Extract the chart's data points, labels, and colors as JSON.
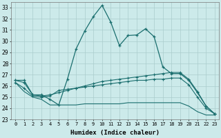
{
  "xlabel": "Humidex (Indice chaleur)",
  "background_color": "#cceaea",
  "grid_color": "#aacccc",
  "line_color": "#1a6e6e",
  "xlim": [
    -0.5,
    23.5
  ],
  "ylim": [
    23,
    33.5
  ],
  "yticks": [
    23,
    24,
    25,
    26,
    27,
    28,
    29,
    30,
    31,
    32,
    33
  ],
  "xticks": [
    0,
    1,
    2,
    3,
    4,
    5,
    6,
    7,
    8,
    9,
    10,
    11,
    12,
    13,
    14,
    15,
    16,
    17,
    18,
    19,
    20,
    21,
    22,
    23
  ],
  "line1_x": [
    0,
    1,
    2,
    3,
    4,
    5,
    6,
    7,
    8,
    9,
    10,
    11,
    12,
    13,
    14,
    15,
    16,
    17,
    18,
    19,
    20,
    21,
    22,
    23
  ],
  "line1_y": [
    26.5,
    26.5,
    25.2,
    25.2,
    24.8,
    24.3,
    26.6,
    29.3,
    30.9,
    32.2,
    33.2,
    31.7,
    29.6,
    30.5,
    30.55,
    31.1,
    30.4,
    27.7,
    27.1,
    27.1,
    26.5,
    25.4,
    24.2,
    23.5
  ],
  "line2_x": [
    0,
    1,
    2,
    3,
    4,
    5,
    6,
    7,
    8,
    9,
    10,
    11,
    12,
    13,
    14,
    15,
    16,
    17,
    18,
    19,
    20,
    21,
    22,
    23
  ],
  "line2_y": [
    26.5,
    26.3,
    25.2,
    25.1,
    25.2,
    25.4,
    25.6,
    25.8,
    26.0,
    26.2,
    26.4,
    26.5,
    26.6,
    26.7,
    26.8,
    26.9,
    27.0,
    27.1,
    27.2,
    27.2,
    26.6,
    25.5,
    24.2,
    23.5
  ],
  "line3_x": [
    0,
    1,
    2,
    3,
    4,
    5,
    6,
    7,
    8,
    9,
    10,
    11,
    12,
    13,
    14,
    15,
    16,
    17,
    18,
    19,
    20,
    21,
    22,
    23
  ],
  "line3_y": [
    26.3,
    25.8,
    25.1,
    25.0,
    25.1,
    25.6,
    25.7,
    25.8,
    25.9,
    26.0,
    26.1,
    26.2,
    26.3,
    26.4,
    26.5,
    26.5,
    26.6,
    26.6,
    26.7,
    26.7,
    26.1,
    25.0,
    24.0,
    23.5
  ],
  "line4_x": [
    0,
    1,
    2,
    3,
    4,
    5,
    6,
    7,
    8,
    9,
    10,
    11,
    12,
    13,
    14,
    15,
    16,
    17,
    18,
    19,
    20,
    21,
    22,
    23
  ],
  "line4_y": [
    26.3,
    25.5,
    25.0,
    24.8,
    24.3,
    24.3,
    24.3,
    24.3,
    24.4,
    24.4,
    24.4,
    24.4,
    24.4,
    24.5,
    24.5,
    24.5,
    24.5,
    24.5,
    24.5,
    24.5,
    24.2,
    23.7,
    23.4,
    23.4
  ]
}
